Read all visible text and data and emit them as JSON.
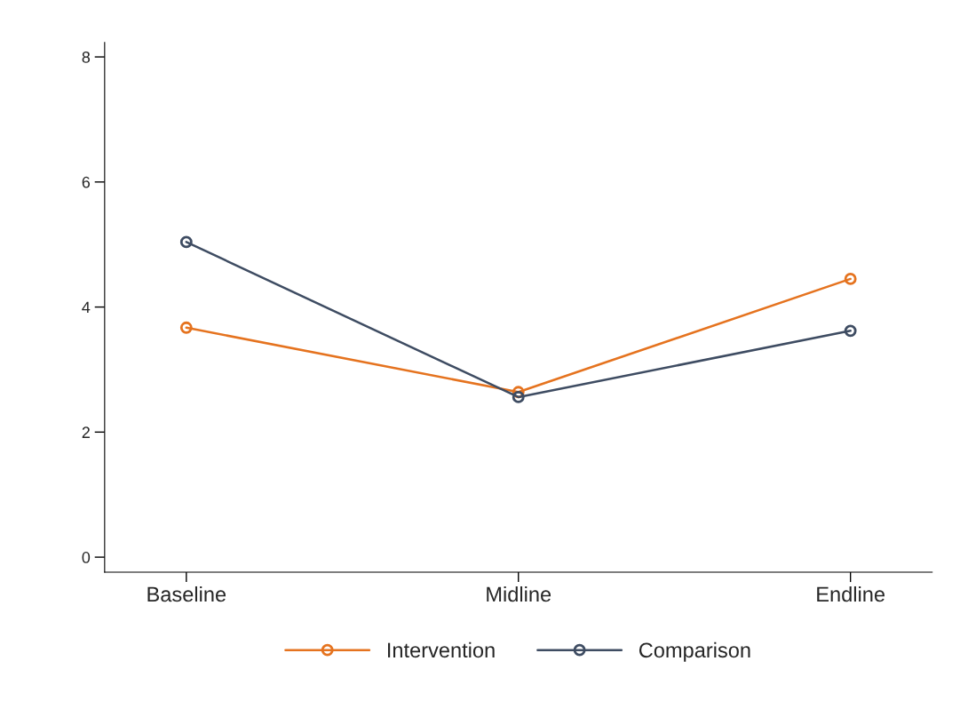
{
  "chart_data": {
    "type": "line",
    "categories": [
      "Baseline",
      "Midline",
      "Endline"
    ],
    "series": [
      {
        "name": "Intervention",
        "color": "#e5731f",
        "values": [
          3.67,
          2.64,
          4.45
        ]
      },
      {
        "name": "Comparison",
        "color": "#3e4c62",
        "values": [
          5.04,
          2.56,
          3.62
        ]
      }
    ],
    "ylim": [
      -0.24,
      8.23
    ],
    "yticks": [
      0,
      2,
      4,
      6,
      8
    ],
    "grid": false,
    "legend": "bottom",
    "marker": "circle",
    "line_style": "solid"
  }
}
